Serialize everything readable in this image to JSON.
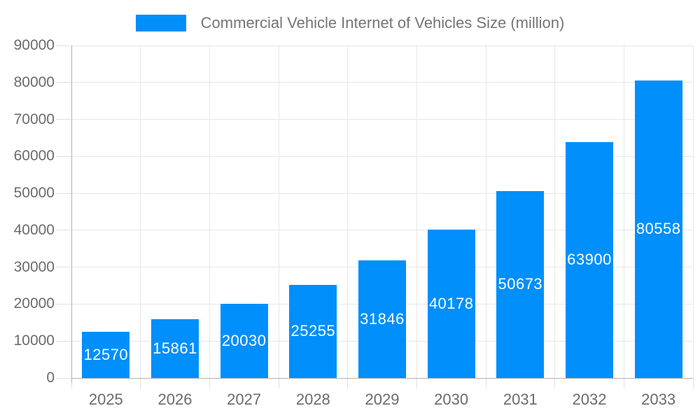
{
  "page": {
    "background": "#ffffff"
  },
  "legend": {
    "label": "Commercial Vehicle Internet of Vehicles Size (million)",
    "position": "top",
    "swatch_color": "#008FFB",
    "text_color": "#757575"
  },
  "chart_data": {
    "type": "bar",
    "title": "Commercial Vehicle Internet of Vehicles Size (million)",
    "categories": [
      "2025",
      "2026",
      "2027",
      "2028",
      "2029",
      "2030",
      "2031",
      "2032",
      "2033"
    ],
    "values": [
      12570,
      15861,
      20030,
      25255,
      31846,
      40178,
      50673,
      63900,
      80558
    ],
    "value_labels_shown": true,
    "xlabel": "",
    "ylabel": "",
    "ylim": [
      0,
      90000
    ],
    "ytick_interval": 10000,
    "ytick_labels": [
      "0",
      "10000",
      "20000",
      "30000",
      "40000",
      "50000",
      "60000",
      "70000",
      "80000",
      "90000"
    ],
    "grid": "both",
    "legend_position": "top",
    "colors": {
      "bar": "#008FFB",
      "value_label": "#ffffff",
      "axis_labels": "#6b6b6b",
      "grid": "#e7e7e7",
      "tick": "#e0e0e0",
      "axis_line": "#b3b3b3",
      "background": "#ffffff"
    }
  }
}
